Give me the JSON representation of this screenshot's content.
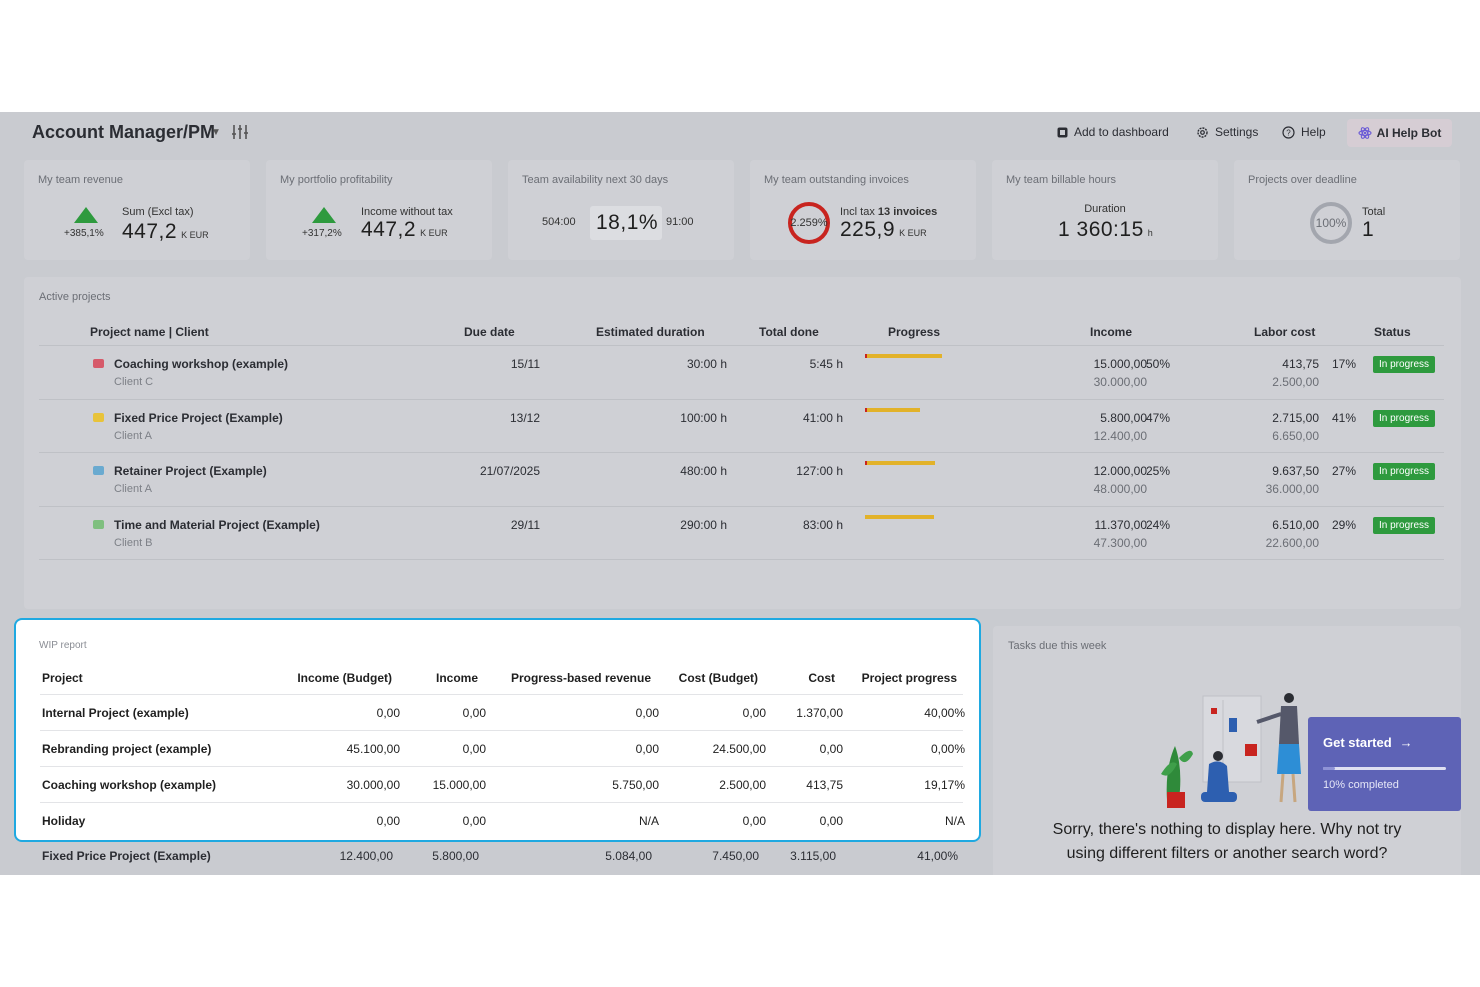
{
  "header": {
    "title": "Account Manager/PM",
    "add_to_dashboard": "Add to dashboard",
    "settings": "Settings",
    "help": "Help",
    "ai_help_bot": "AI Help Bot"
  },
  "kpis": {
    "revenue": {
      "title": "My team revenue",
      "change": "+385,1%",
      "label": "Sum (Excl tax)",
      "value": "447,2",
      "unit": "K EUR"
    },
    "profitability": {
      "title": "My portfolio profitability",
      "change": "+317,2%",
      "label": "Income without tax",
      "value": "447,2",
      "unit": "K EUR"
    },
    "availability": {
      "title": "Team availability next 30 days",
      "left": "504:00",
      "value": "18,1%",
      "right": "91:00"
    },
    "invoices": {
      "title": "My team outstanding invoices",
      "ring": "2.259%",
      "label_prefix": "Incl tax",
      "label_count": "13 invoices",
      "value": "225,9",
      "unit": "K EUR"
    },
    "billable": {
      "title": "My team billable hours",
      "label": "Duration",
      "value": "1 360:15",
      "unit": "h"
    },
    "deadline": {
      "title": "Projects over deadline",
      "ring": "100%",
      "label": "Total",
      "value": "1"
    }
  },
  "active_projects": {
    "title": "Active projects",
    "columns": {
      "name": "Project name | Client",
      "due": "Due date",
      "est": "Estimated duration",
      "done": "Total done",
      "progress": "Progress",
      "income": "Income",
      "labor": "Labor cost",
      "status": "Status"
    },
    "rows": [
      {
        "name": "Coaching workshop (example)",
        "client": "Client C",
        "due": "15/11",
        "est": "30:00 h",
        "done": "5:45 h",
        "income": "15.000,00",
        "income_budget": "30.000,00",
        "income_pct": "50%",
        "labor": "413,75",
        "labor_budget": "2.500,00",
        "labor_pct": "17%",
        "status": "In progress",
        "icon_color": "#d65a6a",
        "progress": [
          0.19,
          0.79,
          0.02
        ]
      },
      {
        "name": "Fixed Price Project (Example)",
        "client": "Client A",
        "due": "13/12",
        "est": "100:00 h",
        "done": "41:00 h",
        "income": "5.800,00",
        "income_budget": "12.400,00",
        "income_pct": "47%",
        "labor": "2.715,00",
        "labor_budget": "6.650,00",
        "labor_pct": "41%",
        "status": "In progress",
        "icon_color": "#e8c33a",
        "progress": [
          0.41,
          0.57,
          0.02
        ]
      },
      {
        "name": "Retainer Project (Example)",
        "client": "Client A",
        "due": "21/07/2025",
        "est": "480:00 h",
        "done": "127:00 h",
        "income": "12.000,00",
        "income_budget": "48.000,00",
        "income_pct": "25%",
        "labor": "9.637,50",
        "labor_budget": "36.000,00",
        "labor_pct": "27%",
        "status": "In progress",
        "icon_color": "#6aaad0",
        "progress": [
          0.26,
          0.72,
          0.02
        ]
      },
      {
        "name": "Time and Material Project (Example)",
        "client": "Client B",
        "due": "29/11",
        "est": "290:00 h",
        "done": "83:00 h",
        "income": "11.370,00",
        "income_budget": "47.300,00",
        "income_pct": "24%",
        "labor": "6.510,00",
        "labor_budget": "22.600,00",
        "labor_pct": "29%",
        "status": "In progress",
        "icon_color": "#7fbf7f",
        "progress": [
          0.29,
          0.71,
          0.0
        ]
      }
    ]
  },
  "wip": {
    "title": "WIP report",
    "columns": {
      "project": "Project",
      "income_budget": "Income (Budget)",
      "income": "Income",
      "pbr": "Progress-based revenue",
      "cost_budget": "Cost (Budget)",
      "cost": "Cost",
      "progress": "Project progress"
    },
    "rows": [
      {
        "project": "Internal Project (example)",
        "income_budget": "0,00",
        "income": "0,00",
        "pbr": "0,00",
        "cost_budget": "0,00",
        "cost": "1.370,00",
        "progress": "40,00%"
      },
      {
        "project": "Rebranding project (example)",
        "income_budget": "45.100,00",
        "income": "0,00",
        "pbr": "0,00",
        "cost_budget": "24.500,00",
        "cost": "0,00",
        "progress": "0,00%"
      },
      {
        "project": "Coaching workshop (example)",
        "income_budget": "30.000,00",
        "income": "15.000,00",
        "pbr": "5.750,00",
        "cost_budget": "2.500,00",
        "cost": "413,75",
        "progress": "19,17%"
      },
      {
        "project": "Holiday",
        "income_budget": "0,00",
        "income": "0,00",
        "pbr": "N/A",
        "cost_budget": "0,00",
        "cost": "0,00",
        "progress": "N/A"
      }
    ],
    "partial_row": {
      "project": "Fixed Price Project (Example)",
      "income_budget": "12.400,00",
      "income": "5.800,00",
      "pbr": "5.084,00",
      "cost_budget": "7.450,00",
      "cost": "3.115,00",
      "progress": "41,00%"
    }
  },
  "tasks": {
    "title": "Tasks due this week",
    "empty_line1": "Sorry, there's nothing to display here. Why not try",
    "empty_line2": "using different filters or another search word?"
  },
  "onboarding": {
    "label": "Get started",
    "progress_text": "10% completed",
    "progress": 0.1
  }
}
